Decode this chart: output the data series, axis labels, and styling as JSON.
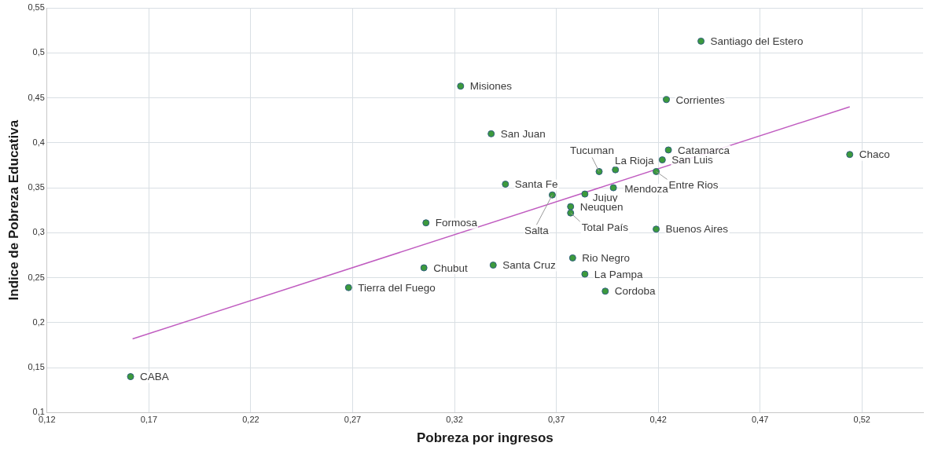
{
  "chart_data": {
    "type": "scatter",
    "xlabel": "Pobreza por ingresos",
    "ylabel": "Indice de Pobreza Educativa",
    "xlim": [
      0.12,
      0.55
    ],
    "xticks": [
      {
        "value": 0.12,
        "label": "0,12"
      },
      {
        "value": 0.17,
        "label": "0,17"
      },
      {
        "value": 0.22,
        "label": "0,22"
      },
      {
        "value": 0.27,
        "label": "0,27"
      },
      {
        "value": 0.32,
        "label": "0,32"
      },
      {
        "value": 0.37,
        "label": "0,37"
      },
      {
        "value": 0.42,
        "label": "0,42"
      },
      {
        "value": 0.47,
        "label": "0,47"
      },
      {
        "value": 0.52,
        "label": "0,52"
      }
    ],
    "ylim": [
      0.1,
      0.55
    ],
    "yticks": [
      {
        "value": 0.1,
        "label": "0,1"
      },
      {
        "value": 0.15,
        "label": "0,15"
      },
      {
        "value": 0.2,
        "label": "0,2"
      },
      {
        "value": 0.25,
        "label": "0,25"
      },
      {
        "value": 0.3,
        "label": "0,3"
      },
      {
        "value": 0.35,
        "label": "0,35"
      },
      {
        "value": 0.4,
        "label": "0,4"
      },
      {
        "value": 0.45,
        "label": "0,45"
      },
      {
        "value": 0.5,
        "label": "0,5"
      },
      {
        "value": 0.55,
        "label": "0,55"
      }
    ],
    "grid": true,
    "marker": "circle",
    "series": [
      {
        "color": "#3c9a3c",
        "x": [
          0.161,
          0.268,
          0.305,
          0.306,
          0.339,
          0.323,
          0.338,
          0.345,
          0.368,
          0.384,
          0.377,
          0.377,
          0.378,
          0.384,
          0.394,
          0.391,
          0.399,
          0.398,
          0.419,
          0.422,
          0.425,
          0.419,
          0.424,
          0.441,
          0.514
        ],
        "values": [
          0.14,
          0.239,
          0.261,
          0.311,
          0.264,
          0.463,
          0.41,
          0.354,
          0.342,
          0.343,
          0.329,
          0.322,
          0.272,
          0.254,
          0.235,
          0.368,
          0.37,
          0.35,
          0.368,
          0.381,
          0.392,
          0.304,
          0.448,
          0.513,
          0.387
        ],
        "value_labels": [
          "CABA",
          "Tierra del Fuego",
          "Chubut",
          "Formosa",
          "Santa Cruz",
          "Misiones",
          "San Juan",
          "Santa Fe",
          "Salta",
          "Jujuy",
          "Neuquen",
          "Total País",
          "Rio Negro",
          "La Pampa",
          "Cordoba",
          "Tucuman",
          "La Rioja",
          "Mendoza",
          "Entre Rios",
          "San Luis",
          "Catamarca",
          "Buenos Aires",
          "Corrientes",
          "Santiago del Estero",
          "Chaco"
        ]
      },
      {
        "type": "line",
        "marker": "none",
        "color": "#c05cc0",
        "x": [
          0.162,
          0.514
        ],
        "values": [
          0.182,
          0.44
        ]
      }
    ]
  }
}
